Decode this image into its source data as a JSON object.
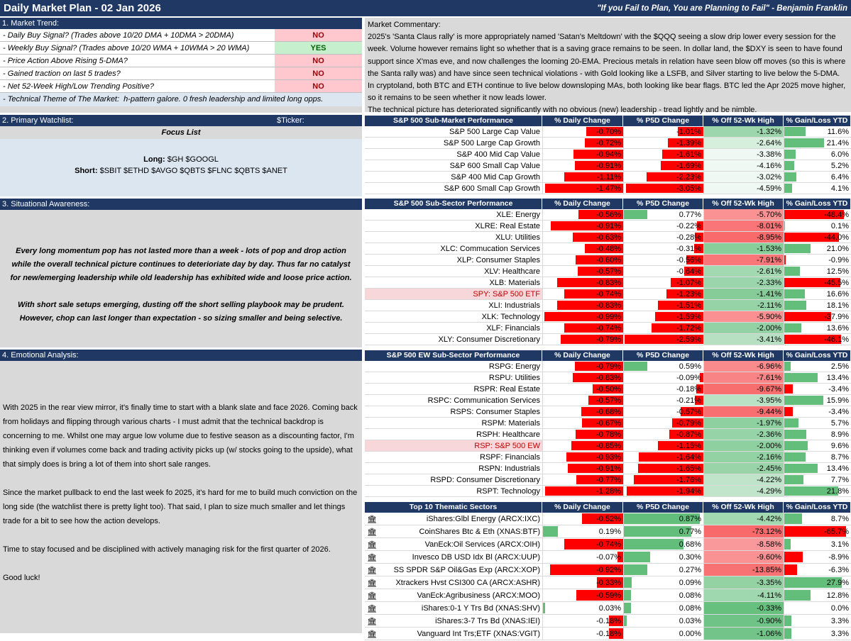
{
  "header": {
    "title": "Daily Market Plan - 02 Jan 2026",
    "quote": "\"If you Fail to Plan, You are Planning to Fail\" - Benjamin Franklin"
  },
  "trend": {
    "title": "1. Market Trend:",
    "rows": [
      {
        "label": "- Daily Buy Signal? (Trades above 10/20 DMA + 10DMA > 20DMA)",
        "value": "NO"
      },
      {
        "label": "- Weekly Buy Signal? (Trades above 10/20 WMA + 10WMA > 20 WMA)",
        "value": "YES"
      },
      {
        "label": "- Price Action Above Rising 5-DMA?",
        "value": "NO"
      },
      {
        "label": "- Gained traction on last 5 trades?",
        "value": "NO"
      },
      {
        "label": "- Net 52-Week High/Low Trending Positive?",
        "value": "NO"
      }
    ],
    "theme_label": "- Technical Theme of The Market:",
    "theme_value": "h-pattern galore. 0 fresh leadership and limited long opps."
  },
  "watchlist": {
    "title": "2. Primary Watchlist:",
    "ticker_label": "$Ticker:",
    "focus": "Focus List",
    "long_label": "Long:",
    "long": "$GH $GOOGL",
    "short_label": "Short:",
    "short": "$SBIT $ETHD $AVGO $QBTS $FLNC $QBTS $ANET"
  },
  "situational": {
    "title": "3. Situational Awareness:",
    "p1": "Every long momentum pop has not lasted more than a week - lots of pop and drop action while the overall technical picture continues to deterioriate day by day. Thus far no catalyst for new/emerging leadership while old leadership has exhibited wide and loose price action.",
    "p2": "With short sale setups emerging, dusting off the short selling playbook may be prudent. However, chop can last longer than expectation - so sizing smaller and being selective."
  },
  "emotional": {
    "title": "4. Emotional Analysis:",
    "p1": "With 2025 in the rear view mirror, it's finally time to start with a blank slate and face 2026. Coming back from holidays and flipping through various charts - I must admit that the technical backdrop is concerning to me. Whilst one may argue low volume due to festive season as a discounting factor, I'm thinking even if volumes come back and trading activity picks up (w/ stocks going to the upside), what that simply does is bring a lot of them into short sale ranges.",
    "p2": "Since the market pullback to end the last week fo 2025, it's hard for me to build much conviction on the long side (the watchlist there is pretty light too). That said, I plan to size much smaller and let things trade for a bit to see how the action develops.",
    "p3": "Time to stay focused and be disciplined with actively managing risk for the first quarter of 2026.",
    "p4": "Good luck!"
  },
  "commentary": {
    "title": "Market Commentary:",
    "p1": "2025's 'Santa Claus rally' is more appropriately named 'Satan's Meltdown' with the $QQQ seeing a slow drip lower every session for the week. Volume however remains light so whether that is a saving grace remains to be seen. In dollar land, the $DXY is seen to have found support since X'mas eve, and now challenges the looming 20-EMA. Precious metals in relation have seen blow off moves (so this is where the Santa rally was) and have since seen technical violations - with Gold looking like a LSFB, and Silver starting to live below the 5-DMA. In cryptoland, both BTC and ETH continue to live below downsloping MAs, both looking like bear flags. BTC led the Apr 2025 move higher, so it remains to be seen whether it now leads lower.",
    "p2": "The technical picture has deteriorated significantly with no obvious (new) leadership - tread lightly and be nimble."
  },
  "cols": [
    "% Daily Change",
    "% P5D Change",
    "% Off 52-Wk High",
    "% Gain/Loss YTD"
  ],
  "tables": [
    {
      "title": "S&P 500 Sub-Market Performance",
      "max": [
        1.5,
        3.1,
        5,
        25
      ],
      "rows": [
        {
          "name": "S&P 500 Large Cap Value",
          "d": "-0.70%",
          "p": "-1.01%",
          "h": "-1.32%",
          "y": "11.6%"
        },
        {
          "name": "S&P 500 Large Cap Growth",
          "d": "-0.72%",
          "p": "-1.39%",
          "h": "-2.64%",
          "y": "21.4%"
        },
        {
          "name": "S&P 400 Mid Cap Value",
          "d": "-0.94%",
          "p": "-1.61%",
          "h": "-3.38%",
          "y": "6.0%"
        },
        {
          "name": "S&P 600 Small Cap Value",
          "d": "-0.91%",
          "p": "-1.69%",
          "h": "-4.16%",
          "y": "5.2%"
        },
        {
          "name": "S&P 400 Mid Cap Growth",
          "d": "-1.11%",
          "p": "-2.23%",
          "h": "-3.02%",
          "y": "6.4%"
        },
        {
          "name": "S&P 600 Small Cap Growth",
          "d": "-1.47%",
          "p": "-3.05%",
          "h": "-4.59%",
          "y": "4.1%"
        }
      ]
    },
    {
      "title": "S&P 500 Sub-Sector Performance",
      "max": [
        1.0,
        2.6,
        9,
        50
      ],
      "rows": [
        {
          "name": "XLE: Energy",
          "d": "-0.56%",
          "p": "0.77%",
          "h": "-5.70%",
          "y": "-48.4%"
        },
        {
          "name": "XLRE: Real Estate",
          "d": "-0.91%",
          "p": "-0.22%",
          "h": "-8.01%",
          "y": "0.1%"
        },
        {
          "name": "XLU: Utilities",
          "d": "-0.63%",
          "p": "-0.28%",
          "h": "-8.95%",
          "y": "-44.0%"
        },
        {
          "name": "XLC: Commucation Services",
          "d": "-0.48%",
          "p": "-0.31%",
          "h": "-1.53%",
          "y": "21.0%"
        },
        {
          "name": "XLP: Consumer Staples",
          "d": "-0.60%",
          "p": "-0.56%",
          "h": "-7.91%",
          "y": "-0.9%"
        },
        {
          "name": "XLV: Healthcare",
          "d": "-0.57%",
          "p": "-0.64%",
          "h": "-2.61%",
          "y": "12.5%"
        },
        {
          "name": "XLB: Materials",
          "d": "-0.83%",
          "p": "-1.07%",
          "h": "-2.33%",
          "y": "-45.5%"
        },
        {
          "name": "SPY: S&P 500 ETF",
          "d": "-0.74%",
          "p": "-1.23%",
          "h": "-1.41%",
          "y": "16.6%",
          "hl": true
        },
        {
          "name": "XLI: Industrials",
          "d": "-0.83%",
          "p": "-1.51%",
          "h": "-2.11%",
          "y": "18.1%"
        },
        {
          "name": "XLK: Technology",
          "d": "-0.99%",
          "p": "-1.59%",
          "h": "-5.90%",
          "y": "-37.9%"
        },
        {
          "name": "XLF: Financials",
          "d": "-0.74%",
          "p": "-1.72%",
          "h": "-2.00%",
          "y": "13.6%"
        },
        {
          "name": "XLY: Consumer Discretionary",
          "d": "-0.79%",
          "p": "-2.59%",
          "h": "-3.41%",
          "y": "-46.1%"
        }
      ]
    },
    {
      "title": "S&P 500 EW Sub-Sector Performance",
      "max": [
        1.3,
        2.0,
        10,
        25
      ],
      "rows": [
        {
          "name": "RSPG: Energy",
          "d": "-0.79%",
          "p": "0.59%",
          "h": "-6.96%",
          "y": "2.5%"
        },
        {
          "name": "RSPU: Utilities",
          "d": "-0.83%",
          "p": "-0.09%",
          "h": "-7.61%",
          "y": "13.4%"
        },
        {
          "name": "RSPR: Real Estate",
          "d": "-0.50%",
          "p": "-0.18%",
          "h": "-9.67%",
          "y": "-3.4%"
        },
        {
          "name": "RSPC: Communication Services",
          "d": "-0.57%",
          "p": "-0.21%",
          "h": "-3.95%",
          "y": "15.9%"
        },
        {
          "name": "RSPS: Consumer Staples",
          "d": "-0.68%",
          "p": "-0.57%",
          "h": "-9.44%",
          "y": "-3.4%"
        },
        {
          "name": "RSPM: Materials",
          "d": "-0.67%",
          "p": "-0.79%",
          "h": "-1.97%",
          "y": "5.7%"
        },
        {
          "name": "RSPH: Healthcare",
          "d": "-0.78%",
          "p": "-0.87%",
          "h": "-2.36%",
          "y": "8.9%"
        },
        {
          "name": "RSP: S&P 500 EW",
          "d": "-0.85%",
          "p": "-1.15%",
          "h": "-2.00%",
          "y": "9.6%",
          "hl": true
        },
        {
          "name": "RSPF: Financials",
          "d": "-0.93%",
          "p": "-1.64%",
          "h": "-2.16%",
          "y": "8.7%"
        },
        {
          "name": "RSPN: Industrials",
          "d": "-0.91%",
          "p": "-1.65%",
          "h": "-2.45%",
          "y": "13.4%"
        },
        {
          "name": "RSPD: Consumer Discretionary",
          "d": "-0.77%",
          "p": "-1.76%",
          "h": "-4.22%",
          "y": "7.7%"
        },
        {
          "name": "RSPT: Technology",
          "d": "-1.28%",
          "p": "-1.94%",
          "h": "-4.29%",
          "y": "21.8%"
        }
      ]
    },
    {
      "title": "Top 10 Thematic Sectors",
      "bank": true,
      "max": [
        1.0,
        0.9,
        15,
        30
      ],
      "rows": [
        {
          "name": "iShares:Glbl Energy (ARCX:IXC)",
          "d": "-0.52%",
          "p": "0.87%",
          "h": "-4.42%",
          "y": "8.7%"
        },
        {
          "name": "CoinShares Btc & Eth (XNAS:BTF)",
          "d": "0.19%",
          "p": "0.77%",
          "h": "-73.12%",
          "y": "-65.7%"
        },
        {
          "name": "VanEck:Oil Services (ARCX:OIH)",
          "d": "-0.74%",
          "p": "0.68%",
          "h": "-8.58%",
          "y": "3.1%"
        },
        {
          "name": "Invesco DB USD Idx Bl (ARCX:UUP)",
          "d": "-0.07%",
          "p": "0.30%",
          "h": "-9.60%",
          "y": "-8.9%"
        },
        {
          "name": "SS SPDR S&P Oil&Gas Exp (ARCX:XOP)",
          "d": "-0.92%",
          "p": "0.27%",
          "h": "-13.85%",
          "y": "-6.3%"
        },
        {
          "name": "Xtrackers Hvst CSI300 CA (ARCX:ASHR)",
          "d": "-0.33%",
          "p": "0.09%",
          "h": "-3.35%",
          "y": "27.9%"
        },
        {
          "name": "VanEck:Agribusiness (ARCX:MOO)",
          "d": "-0.59%",
          "p": "0.08%",
          "h": "-4.11%",
          "y": "12.8%"
        },
        {
          "name": "iShares:0-1 Y Trs Bd (XNAS:SHV)",
          "d": "0.03%",
          "p": "0.08%",
          "h": "-0.33%",
          "y": "0.0%"
        },
        {
          "name": "iShares:3-7 Trs Bd (XNAS:IEI)",
          "d": "-0.18%",
          "p": "0.03%",
          "h": "-0.90%",
          "y": "3.3%"
        },
        {
          "name": "Vanguard Int Trs;ETF (XNAS:VGIT)",
          "d": "-0.18%",
          "p": "0.00%",
          "h": "-1.06%",
          "y": "3.3%"
        }
      ]
    }
  ],
  "colors": {
    "navy": "#1f3864",
    "red": "#ff0000",
    "green": "#63be7b",
    "lightred": "#f8696b"
  }
}
